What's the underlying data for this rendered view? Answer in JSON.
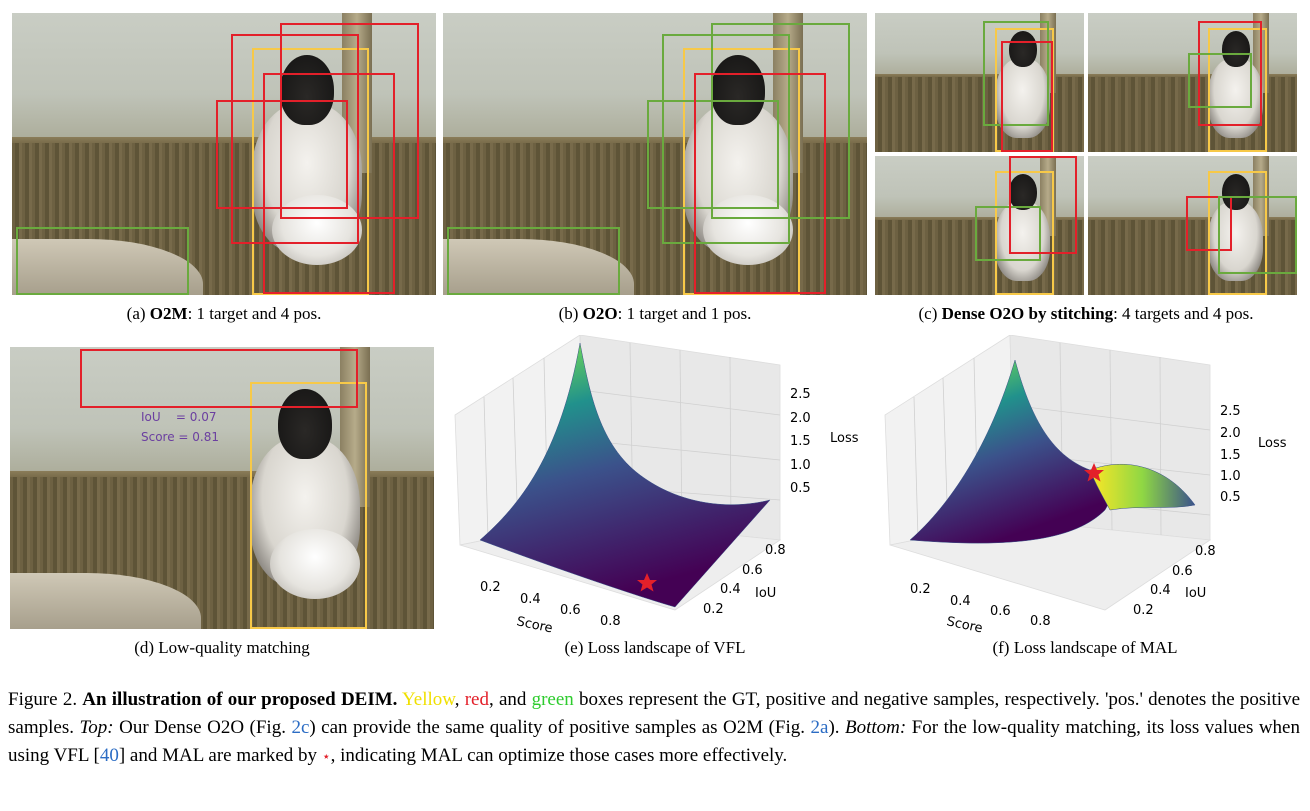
{
  "captions": {
    "a": {
      "prefix": "(a) ",
      "bold": "O2M",
      "rest": ": 1 target and 4 pos."
    },
    "b": {
      "prefix": "(b) ",
      "bold": "O2O",
      "rest": ": 1 target and 1 pos."
    },
    "c": {
      "prefix": "(c) ",
      "bold": "Dense O2O by stitching",
      "rest": ": 4 targets and 4 pos."
    },
    "d": {
      "text": "(d) Low-quality matching"
    },
    "e": {
      "text": "(e) Loss landscape of VFL"
    },
    "f": {
      "text": "(f) Loss landscape of MAL"
    }
  },
  "panel_d": {
    "iou_label": "IoU    = 0.07",
    "score_label": "Score = 0.81"
  },
  "colors": {
    "gt": "#f7c948",
    "positive": "#e3202a",
    "negative": "#6aaa3e",
    "star": "#e3202a"
  },
  "plot_e": {
    "z_ticks": [
      "2.5",
      "2.0",
      "1.5",
      "1.0",
      "0.5"
    ],
    "score_ticks": [
      "0.2",
      "0.4",
      "0.6",
      "0.8"
    ],
    "iou_ticks": [
      "0.8",
      "0.6",
      "0.4",
      "0.2"
    ],
    "z_label": "Loss",
    "x_label": "Score",
    "y_label": "IoU"
  },
  "plot_f": {
    "z_ticks": [
      "2.5",
      "2.0",
      "1.5",
      "1.0",
      "0.5"
    ],
    "score_ticks": [
      "0.2",
      "0.4",
      "0.6",
      "0.8"
    ],
    "iou_ticks": [
      "0.8",
      "0.6",
      "0.4",
      "0.2"
    ],
    "z_label": "Loss",
    "x_label": "Score",
    "y_label": "IoU"
  },
  "figure_text": {
    "label": "Figure 2. ",
    "title": "An illustration of our proposed DEIM.",
    "yellow": "Yellow",
    "sep1": ", ",
    "red": "red",
    "sep2": ", and ",
    "green": "green",
    "s1": " boxes represent the GT, positive and negative samples, respectively. 'pos.' denotes the positive samples. ",
    "top_label": "Top:",
    "s2": " Our Dense O2O (Fig. ",
    "ref_2c": "2c",
    "s3": ") can provide the same quality of positive samples as O2M (Fig. ",
    "ref_2a": "2a",
    "s4": "). ",
    "bottom_label": "Bottom:",
    "s5": " For the low-quality matching, its loss values when using VFL [",
    "ref_40": "40",
    "s6": "] and MAL are marked by ",
    "star": "⋆",
    "s7": ", indicating MAL can optimize those cases more effectively."
  }
}
